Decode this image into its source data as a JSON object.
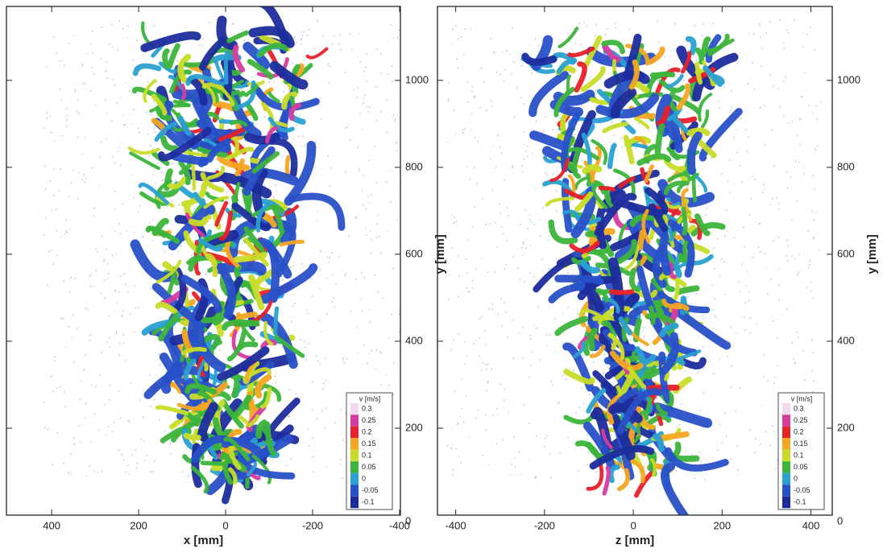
{
  "chart_data": [
    {
      "type": "field",
      "xlabel": "x [mm]",
      "ylabel": "y [mm]",
      "xlim": [
        504,
        -402
      ],
      "xticks": [
        400,
        200,
        0,
        -200,
        -400
      ],
      "ylim": [
        0,
        1170
      ],
      "yticks": [
        0,
        200,
        400,
        600,
        800,
        1000
      ],
      "colorbar": {
        "title": "v [m/s]",
        "ticks": [
          0.3,
          0.25,
          0.2,
          0.15,
          0.1,
          0.05,
          0,
          -0.05,
          -0.1
        ],
        "colors": [
          "#f0d8ee",
          "#d63ca0",
          "#e8202a",
          "#f5a623",
          "#c8dc28",
          "#3cb43c",
          "#2aa0d2",
          "#2850c8",
          "#1c2c9c"
        ]
      }
    },
    {
      "type": "field",
      "xlabel": "z [mm]",
      "ylabel": "y [mm]",
      "xlim": [
        -441,
        448
      ],
      "xticks": [
        -400,
        -200,
        0,
        200,
        400
      ],
      "ylim": [
        0,
        1170
      ],
      "yticks": [
        0,
        200,
        400,
        600,
        800,
        1000
      ],
      "colorbar": {
        "title": "v [m/s]",
        "ticks": [
          0.3,
          0.25,
          0.2,
          0.15,
          0.1,
          0.05,
          0,
          -0.05,
          -0.1
        ],
        "colors": [
          "#f0d8ee",
          "#d63ca0",
          "#e8202a",
          "#f5a623",
          "#c8dc28",
          "#3cb43c",
          "#2aa0d2",
          "#2850c8",
          "#1c2c9c"
        ]
      }
    }
  ]
}
